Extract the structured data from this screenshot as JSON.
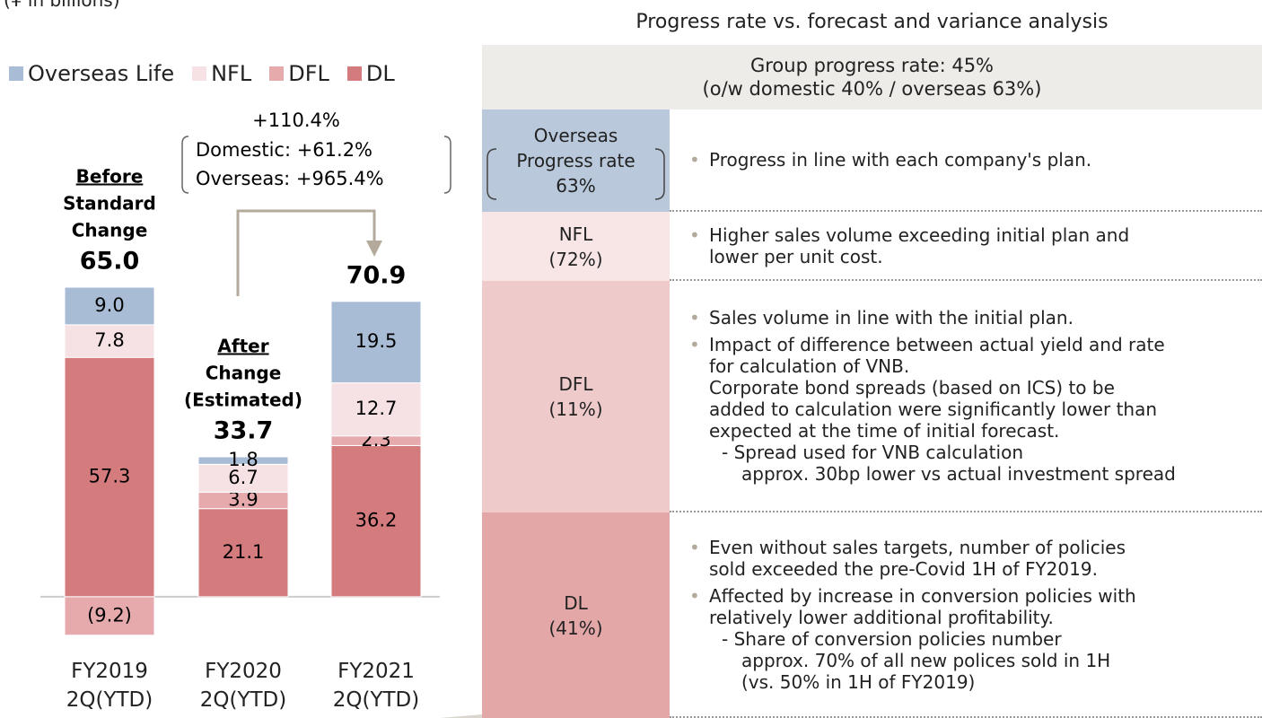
{
  "chart_data": {
    "type": "stacked_bar",
    "unit": "(¥ in billions)",
    "categories": [
      "FY2019 2Q(YTD)",
      "FY2020 2Q(YTD)",
      "FY2021 2Q(YTD)"
    ],
    "series": [
      {
        "name": "Overseas Life",
        "color": "#a9bcd5",
        "values": [
          9.0,
          1.8,
          19.5
        ],
        "value_labels": [
          "9.0",
          "1.8",
          "19.5"
        ]
      },
      {
        "name": "NFL",
        "color": "#f6e2e4",
        "values": [
          7.8,
          6.7,
          12.7
        ],
        "value_labels": [
          "7.8",
          "6.7",
          "12.7"
        ]
      },
      {
        "name": "DFL",
        "color": "#e6a9ac",
        "values": [
          -9.2,
          3.9,
          2.3
        ],
        "value_labels": [
          "(9.2)",
          "3.9",
          "2.3"
        ]
      },
      {
        "name": "DL",
        "color": "#d47b7e",
        "values": [
          57.3,
          21.1,
          36.2
        ],
        "value_labels": [
          "57.3",
          "21.1",
          "36.2"
        ]
      }
    ],
    "totals": [
      65.0,
      33.7,
      70.9
    ],
    "total_labels": [
      "65.0",
      "33.7",
      "70.9"
    ],
    "bar_notes": [
      [
        "Before",
        "Standard",
        "Change"
      ],
      [
        "After",
        "Change",
        "(Estimated)"
      ],
      null
    ],
    "growth": [
      "+110.4%",
      "Domestic: +61.2%",
      "Overseas: +965.4%"
    ],
    "ylim": [
      -20,
      90
    ]
  },
  "table": {
    "title": "Progress rate vs. forecast and variance analysis",
    "header": [
      "Group progress rate: 45%",
      "(o/w domestic 40% / overseas 63%)"
    ],
    "rows": [
      {
        "label": [
          "Overseas",
          "Progress rate",
          "63%"
        ],
        "bullets": [
          {
            "lines": [
              "Progress in line with each company's plan."
            ]
          }
        ]
      },
      {
        "label": [
          "NFL",
          "(72%)"
        ],
        "bullets": [
          {
            "lines": [
              "Higher sales volume exceeding initial plan and",
              "lower per unit cost."
            ]
          }
        ]
      },
      {
        "label": [
          "DFL",
          "(11%)"
        ],
        "bullets": [
          {
            "lines": [
              "Sales volume in line with the initial plan."
            ]
          },
          {
            "lines": [
              "Impact of difference between actual yield and rate",
              "for calculation of VNB.",
              "Corporate bond spreads (based on ICS) to be",
              "added to calculation were significantly lower than",
              "expected at the time of initial forecast."
            ],
            "sub": [
              "- Spread used for VNB calculation",
              "approx. 30bp lower vs actual investment spread"
            ]
          }
        ]
      },
      {
        "label": [
          "DL",
          "(41%)"
        ],
        "bullets": [
          {
            "lines": [
              "Even without sales targets, number of policies",
              "sold exceeded the pre-Covid 1H of FY2019."
            ]
          },
          {
            "lines": [
              "Affected by increase in conversion policies with",
              "relatively lower additional profitability."
            ],
            "sub": [
              "- Share of conversion policies number",
              "approx. 70% of all new polices sold in 1H",
              "(vs. 50% in 1H of FY2019)"
            ]
          }
        ]
      }
    ]
  }
}
